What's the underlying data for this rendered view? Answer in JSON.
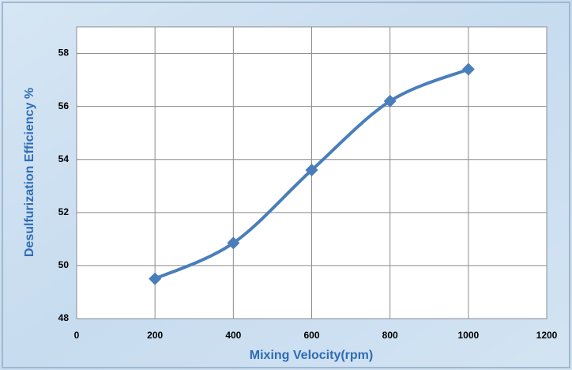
{
  "chart_data": {
    "type": "line",
    "x_label": "Mixing Velocity(rpm)",
    "y_label": "Desulfurization Efficiency %",
    "x": [
      200,
      400,
      600,
      800,
      1000
    ],
    "series": [
      {
        "name": "Desulfurization Efficiency",
        "color": "#4a7ebb",
        "values": [
          49.5,
          50.85,
          53.6,
          56.2,
          57.4
        ]
      }
    ],
    "xlim": [
      0,
      1200
    ],
    "xticks": [
      0,
      200,
      400,
      600,
      800,
      1000,
      1200
    ],
    "ylim": [
      48,
      59
    ],
    "yticks": [
      48,
      50,
      52,
      54,
      56,
      58
    ],
    "grid": true,
    "smooth": true,
    "marker": "diamond"
  }
}
